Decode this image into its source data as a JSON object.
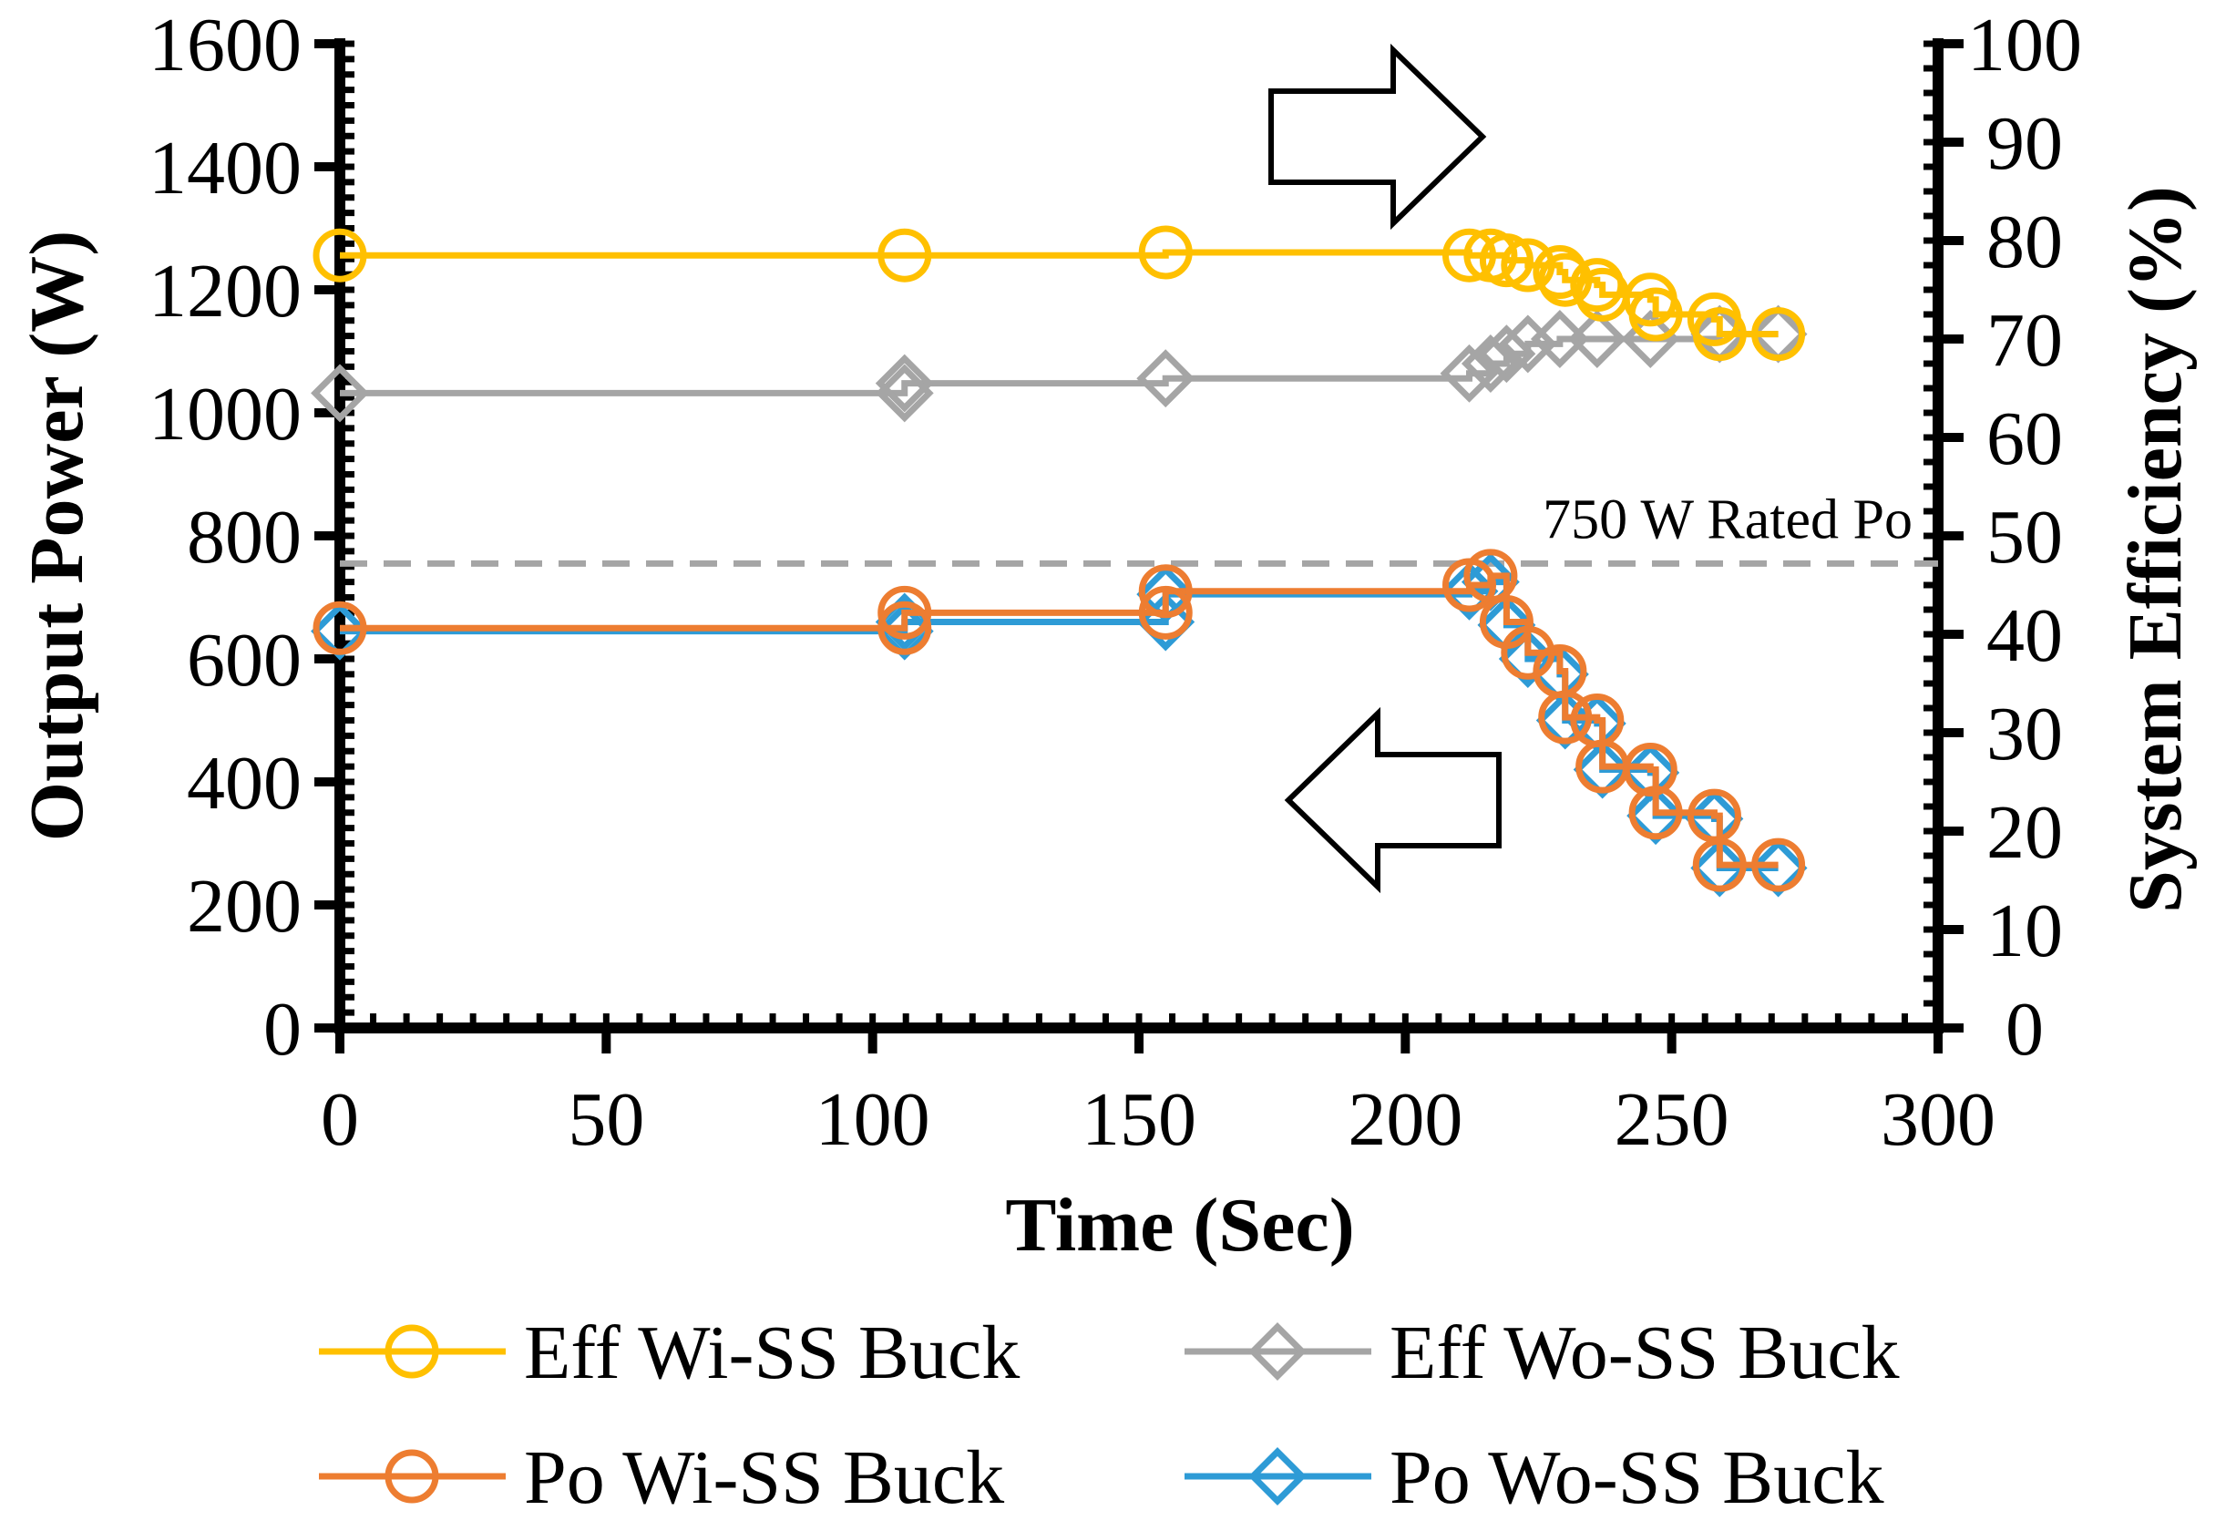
{
  "chart_data": {
    "type": "line",
    "title": "",
    "xlabel": "Time (Sec)",
    "ylabel": "Output Power (W)",
    "y2label": "System Efficiency (%)",
    "xlim": [
      0,
      300
    ],
    "ylim": [
      0,
      1600
    ],
    "y2lim": [
      0,
      100
    ],
    "xticks": [
      0,
      50,
      100,
      150,
      200,
      250,
      300
    ],
    "yticks": [
      0,
      200,
      400,
      600,
      800,
      1000,
      1200,
      1400,
      1600
    ],
    "y2ticks": [
      0,
      10,
      20,
      30,
      40,
      50,
      60,
      70,
      80,
      90,
      100
    ],
    "grid": false,
    "legend_position": "bottom",
    "series": [
      {
        "name": "Eff Wi-SS Buck",
        "axis": "right",
        "color": "#FFC000",
        "marker": "circle",
        "step": true,
        "x": [
          0,
          106,
          155,
          212,
          216,
          219,
          223,
          229,
          230,
          236,
          237,
          246,
          247,
          258,
          259,
          270
        ],
        "y": [
          78.5,
          78.5,
          78.8,
          78.5,
          78.5,
          78.0,
          77.5,
          76.8,
          76.0,
          75.5,
          74.5,
          74.0,
          72.5,
          72.0,
          70.5,
          70.5
        ]
      },
      {
        "name": "Eff Wo-SS Buck",
        "axis": "right",
        "color": "#A5A5A5",
        "marker": "diamond",
        "step": true,
        "x": [
          0,
          106,
          106,
          155,
          212,
          216,
          219,
          223,
          229,
          236,
          246,
          259,
          270
        ],
        "y": [
          64.5,
          64.5,
          65.5,
          66.0,
          66.5,
          67.5,
          68.5,
          69.5,
          70.0,
          70.0,
          70.0,
          70.5,
          70.5
        ]
      },
      {
        "name": "Po Wi-SS Buck",
        "axis": "left",
        "color": "#ED7D31",
        "marker": "circle",
        "step": true,
        "x": [
          0,
          106,
          106,
          155,
          155,
          212,
          216,
          219,
          223,
          229,
          230,
          236,
          237,
          246,
          247,
          258,
          259,
          270
        ],
        "y": [
          650,
          650,
          675,
          675,
          710,
          720,
          735,
          660,
          610,
          580,
          505,
          500,
          425,
          420,
          350,
          345,
          265,
          265
        ]
      },
      {
        "name": "Po Wo-SS Buck",
        "axis": "left",
        "color": "#2E9BD6",
        "marker": "diamond",
        "step": true,
        "x": [
          0,
          106,
          106,
          155,
          155,
          212,
          216,
          219,
          223,
          229,
          230,
          236,
          237,
          246,
          247,
          258,
          259,
          270
        ],
        "y": [
          645,
          645,
          660,
          660,
          705,
          710,
          725,
          655,
          600,
          575,
          500,
          495,
          420,
          415,
          345,
          340,
          260,
          260
        ]
      }
    ],
    "reference_line": {
      "label": "750 W Rated Po",
      "axis": "left",
      "y": 755,
      "color": "#A5A5A5",
      "style": "dashed"
    },
    "annotations": [
      {
        "type": "arrow",
        "direction": "right",
        "meaning": "efficiency series use right axis"
      },
      {
        "type": "arrow",
        "direction": "left",
        "meaning": "power series use left axis"
      }
    ]
  }
}
